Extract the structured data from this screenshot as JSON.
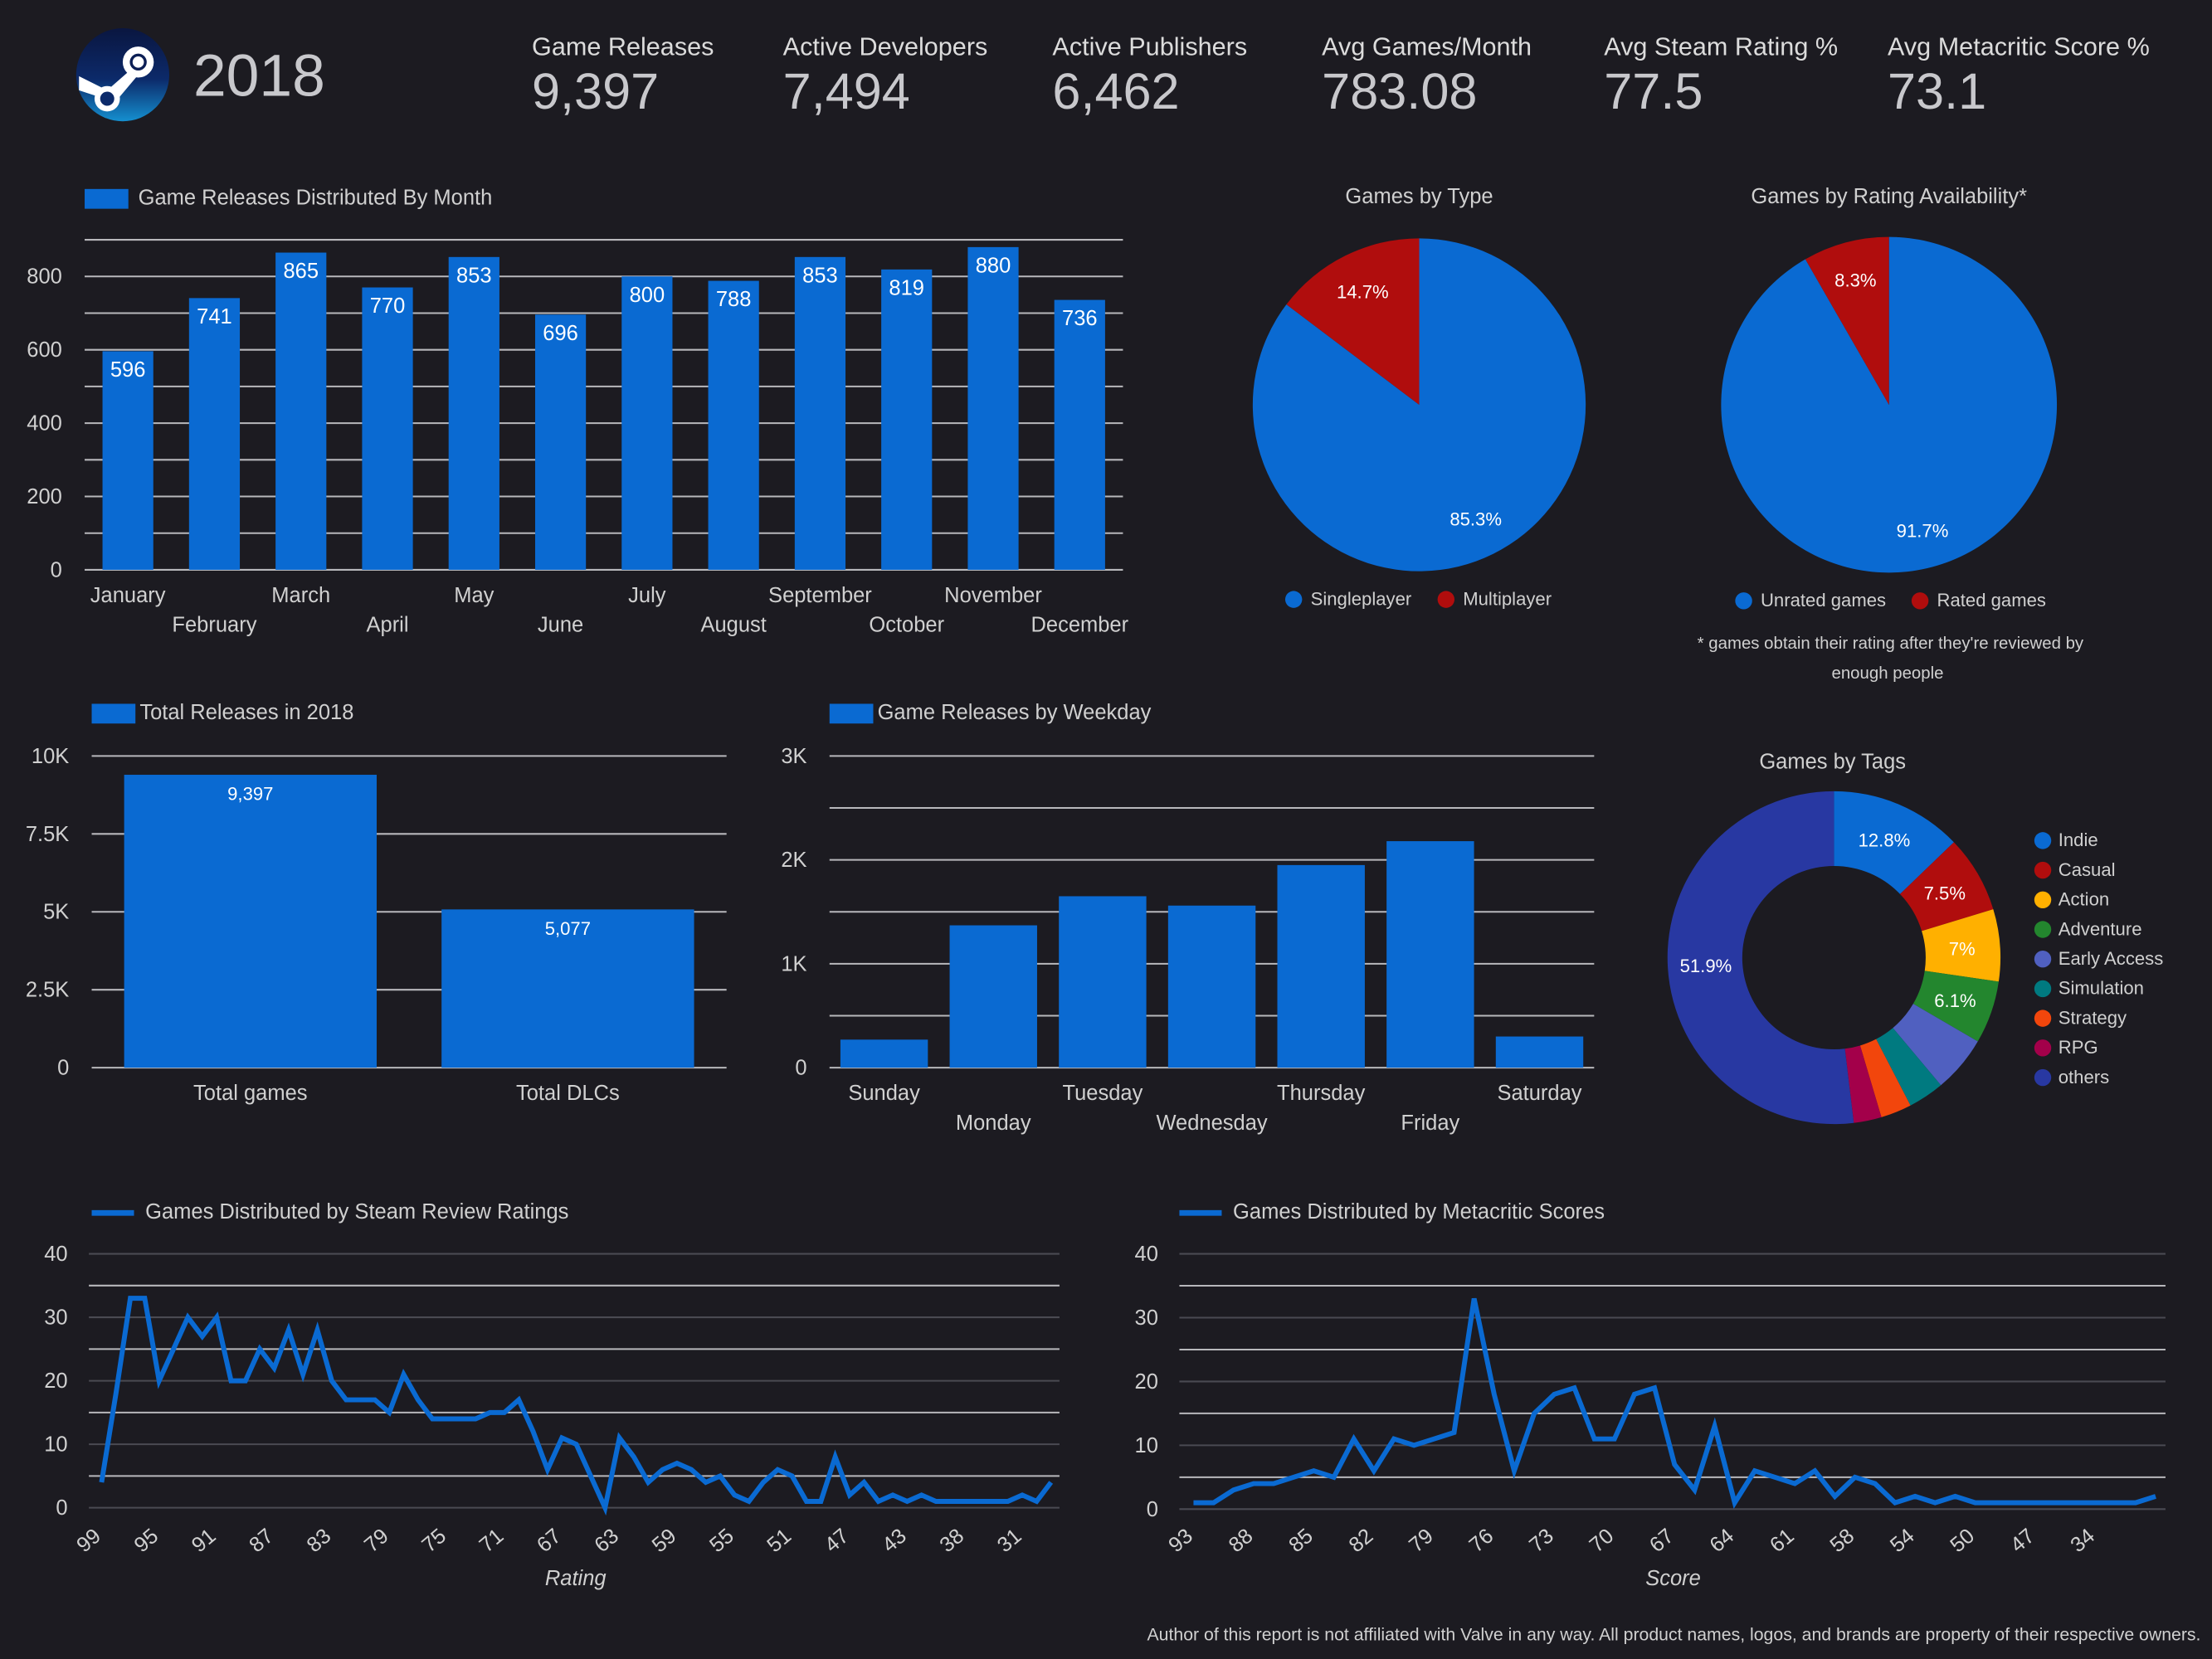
{
  "header": {
    "year": "2018",
    "kpis": [
      {
        "label": "Game Releases",
        "value": "9,397"
      },
      {
        "label": "Active Developers",
        "value": "7,494"
      },
      {
        "label": "Active Publishers",
        "value": "6,462"
      },
      {
        "label": "Avg Games/Month",
        "value": "783.08"
      },
      {
        "label": "Avg Steam Rating %",
        "value": "77.5"
      },
      {
        "label": "Avg Metacritic Score %",
        "value": "73.1"
      }
    ]
  },
  "colors": {
    "background": "#1c1b21",
    "bar": "#0a6ad2",
    "red": "#b00d0d",
    "text": "#d0d0d0"
  },
  "footnote_rating": [
    "* games obtain their rating after they're reviewed by",
    "enough people"
  ],
  "footer": "Author of this report is not affiliated with Valve in any way. All product names, logos, and brands are property of their respective owners.",
  "chart_data": [
    {
      "id": "monthly",
      "type": "bar",
      "title": "Game Releases Distributed By Month",
      "categories": [
        "January",
        "February",
        "March",
        "April",
        "May",
        "June",
        "July",
        "August",
        "September",
        "October",
        "November",
        "December"
      ],
      "values": [
        596,
        741,
        865,
        770,
        853,
        696,
        800,
        788,
        853,
        819,
        880,
        736
      ],
      "yticks": [
        "0",
        "200",
        "400",
        "600",
        "800"
      ],
      "ylim": [
        0,
        900
      ]
    },
    {
      "id": "type",
      "type": "pie",
      "title": "Games by Type",
      "labels": [
        "Singleplayer",
        "Multiplayer"
      ],
      "values": [
        85.3,
        14.7
      ],
      "colors": [
        "#0a6ad2",
        "#b00d0d"
      ]
    },
    {
      "id": "rating",
      "type": "pie",
      "title": "Games by Rating Availability*",
      "labels": [
        "Unrated games",
        "Rated games"
      ],
      "values": [
        91.7,
        8.3
      ],
      "colors": [
        "#0a6ad2",
        "#b00d0d"
      ]
    },
    {
      "id": "total",
      "type": "bar",
      "title": "Total Releases in 2018",
      "categories": [
        "Total games",
        "Total DLCs"
      ],
      "values": [
        9397,
        5077
      ],
      "value_labels": [
        "9,397",
        "5,077"
      ],
      "yticks": [
        "0",
        "2.5K",
        "5K",
        "7.5K",
        "10K"
      ],
      "ylim": [
        0,
        10000
      ]
    },
    {
      "id": "weekday",
      "type": "bar",
      "title": "Game Releases by Weekday",
      "categories": [
        "Sunday",
        "Monday",
        "Tuesday",
        "Wednesday",
        "Thursday",
        "Friday",
        "Saturday"
      ],
      "values": [
        270,
        1370,
        1650,
        1560,
        1950,
        2180,
        300
      ],
      "yticks": [
        "0",
        "1K",
        "2K",
        "3K"
      ],
      "ylim": [
        0,
        3000
      ]
    },
    {
      "id": "tags",
      "type": "pie",
      "title": "Games by Tags",
      "labels": [
        "Indie",
        "Casual",
        "Action",
        "Adventure",
        "Early Access",
        "Simulation",
        "Strategy",
        "RPG",
        "others"
      ],
      "values": [
        12.8,
        7.5,
        7,
        6.1,
        5.5,
        3.5,
        3,
        2.7,
        51.9
      ],
      "colors": [
        "#0a6ad2",
        "#b00d0d",
        "#ffb000",
        "#23862e",
        "#5060c0",
        "#007a80",
        "#f2460c",
        "#a3004a",
        "#2838a2"
      ]
    },
    {
      "id": "steam",
      "type": "line",
      "title": "Games Distributed by Steam Review Ratings",
      "xlabel": "Rating",
      "xticks": [
        "99",
        "95",
        "91",
        "87",
        "83",
        "79",
        "75",
        "71",
        "67",
        "63",
        "59",
        "55",
        "51",
        "47",
        "43",
        "38",
        "31"
      ],
      "values": [
        4,
        18,
        33,
        33,
        20,
        25,
        30,
        27,
        30,
        20,
        20,
        25,
        22,
        28,
        21,
        28,
        20,
        17,
        17,
        17,
        15,
        21,
        17,
        14,
        14,
        14,
        14,
        15,
        15,
        17,
        12,
        6,
        11,
        10,
        5,
        0,
        11,
        8,
        4,
        6,
        7,
        6,
        4,
        5,
        2,
        1,
        4,
        6,
        5,
        1,
        1,
        8,
        2,
        4,
        1,
        2,
        1,
        2,
        1,
        1,
        1,
        1,
        1,
        1,
        2,
        1,
        4
      ],
      "yticks": [
        "0",
        "10",
        "20",
        "30",
        "40"
      ],
      "ylim": [
        0,
        40
      ]
    },
    {
      "id": "meta",
      "type": "line",
      "title": "Games Distributed by Metacritic Scores",
      "xlabel": "Score",
      "xticks": [
        "93",
        "88",
        "85",
        "82",
        "79",
        "76",
        "73",
        "70",
        "67",
        "64",
        "61",
        "58",
        "54",
        "50",
        "47",
        "34"
      ],
      "values": [
        1,
        1,
        3,
        4,
        4,
        5,
        6,
        5,
        11,
        6,
        11,
        10,
        11,
        12,
        33,
        18,
        6,
        15,
        18,
        19,
        11,
        11,
        18,
        19,
        7,
        3,
        13,
        1,
        6,
        5,
        4,
        6,
        2,
        5,
        4,
        1,
        2,
        1,
        2,
        1,
        1,
        1,
        1,
        1,
        1,
        1,
        1,
        1,
        2
      ],
      "yticks": [
        "0",
        "10",
        "20",
        "30",
        "40"
      ],
      "ylim": [
        0,
        40
      ]
    }
  ]
}
